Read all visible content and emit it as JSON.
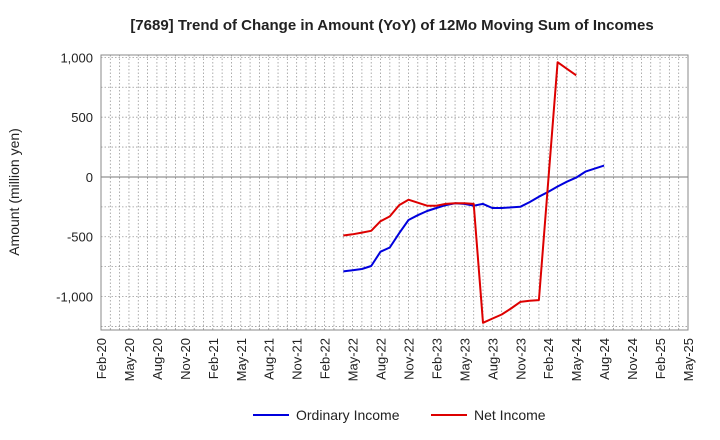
{
  "chart_data": {
    "type": "line",
    "title": "[7689]  Trend of Change in Amount (YoY) of 12Mo Moving Sum of Incomes",
    "xlabel": "",
    "ylabel": "Amount (million yen)",
    "ylim": [
      -1280,
      1020
    ],
    "yticks": [
      1000,
      500,
      0,
      -500,
      -1000
    ],
    "ytick_labels": [
      "1,000",
      "500",
      "0",
      "-500",
      "-1,000"
    ],
    "x_tick_labels": [
      "Feb-20",
      "May-20",
      "Aug-20",
      "Nov-20",
      "Feb-21",
      "May-21",
      "Aug-21",
      "Nov-21",
      "Feb-22",
      "May-22",
      "Aug-22",
      "Nov-22",
      "Feb-23",
      "May-23",
      "Aug-23",
      "Nov-23",
      "Feb-24",
      "May-24",
      "Aug-24",
      "Nov-24",
      "Feb-25",
      "May-25"
    ],
    "x_start": "2020-02",
    "x_end": "2025-05",
    "grid": true,
    "legend_position": "bottom",
    "series": [
      {
        "name": "Ordinary Income",
        "color": "#0000dd",
        "points": [
          [
            "2022-04",
            -790
          ],
          [
            "2022-05",
            -780
          ],
          [
            "2022-06",
            -770
          ],
          [
            "2022-07",
            -745
          ],
          [
            "2022-08",
            -625
          ],
          [
            "2022-09",
            -590
          ],
          [
            "2022-10",
            -470
          ],
          [
            "2022-11",
            -360
          ],
          [
            "2022-12",
            -320
          ],
          [
            "2023-01",
            -285
          ],
          [
            "2023-02",
            -260
          ],
          [
            "2023-03",
            -235
          ],
          [
            "2023-04",
            -220
          ],
          [
            "2023-05",
            -225
          ],
          [
            "2023-06",
            -240
          ],
          [
            "2023-07",
            -225
          ],
          [
            "2023-08",
            -260
          ],
          [
            "2023-09",
            -260
          ],
          [
            "2023-10",
            -255
          ],
          [
            "2023-11",
            -250
          ],
          [
            "2023-12",
            -210
          ],
          [
            "2024-01",
            -165
          ],
          [
            "2024-02",
            -125
          ],
          [
            "2024-03",
            -80
          ],
          [
            "2024-04",
            -40
          ],
          [
            "2024-05",
            -5
          ],
          [
            "2024-06",
            45
          ],
          [
            "2024-07",
            70
          ],
          [
            "2024-08",
            95
          ]
        ]
      },
      {
        "name": "Net Income",
        "color": "#dd0000",
        "points": [
          [
            "2022-04",
            -490
          ],
          [
            "2022-05",
            -480
          ],
          [
            "2022-06",
            -465
          ],
          [
            "2022-07",
            -450
          ],
          [
            "2022-08",
            -370
          ],
          [
            "2022-09",
            -330
          ],
          [
            "2022-10",
            -235
          ],
          [
            "2022-11",
            -190
          ],
          [
            "2022-12",
            -215
          ],
          [
            "2023-01",
            -240
          ],
          [
            "2023-02",
            -240
          ],
          [
            "2023-03",
            -225
          ],
          [
            "2023-04",
            -220
          ],
          [
            "2023-05",
            -220
          ],
          [
            "2023-06",
            -225
          ],
          [
            "2023-07",
            -1220
          ],
          [
            "2023-08",
            -1185
          ],
          [
            "2023-09",
            -1150
          ],
          [
            "2023-10",
            -1100
          ],
          [
            "2023-11",
            -1045
          ],
          [
            "2023-12",
            -1035
          ],
          [
            "2024-01",
            -1030
          ],
          [
            "2024-02",
            -40
          ],
          [
            "2024-03",
            960
          ],
          [
            "2024-04",
            905
          ],
          [
            "2024-05",
            850
          ]
        ]
      }
    ]
  }
}
